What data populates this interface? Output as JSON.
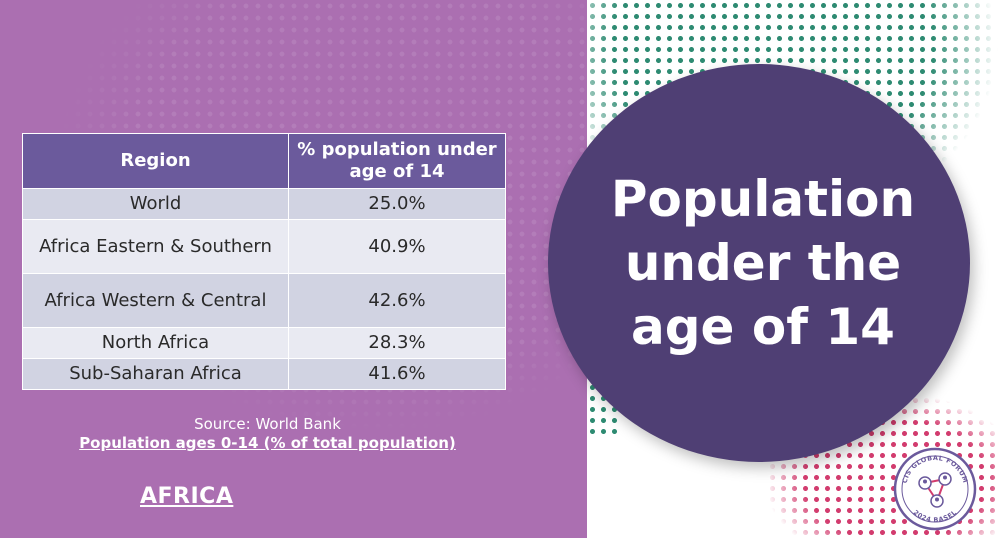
{
  "table": {
    "headers": [
      "Region",
      "% population under age of 14"
    ],
    "rows": [
      {
        "region": "World",
        "value": "25.0%"
      },
      {
        "region": "Africa Eastern & Southern",
        "value": "40.9%"
      },
      {
        "region": "Africa Western & Central",
        "value": "42.6%"
      },
      {
        "region": "North Africa",
        "value": "28.3%"
      },
      {
        "region": "Sub-Saharan Africa",
        "value": "41.6%"
      }
    ]
  },
  "source": {
    "label": "Source: World Bank",
    "link_text": "Population ages 0-14 (% of total population)"
  },
  "nav": {
    "africa_link": "AFRICA"
  },
  "title": "Population under the age of 14",
  "logo": {
    "icon": "network-people-icon",
    "text_top": "CIS GLOBAL FORUM",
    "text_bottom": "2024 BASEL"
  },
  "colors": {
    "left_panel": "#ab6fb1",
    "table_header": "#6b5a9c",
    "title_circle": "#4f3f74",
    "map_teal": "#2e8b72",
    "map_pink": "#d23c6e"
  }
}
